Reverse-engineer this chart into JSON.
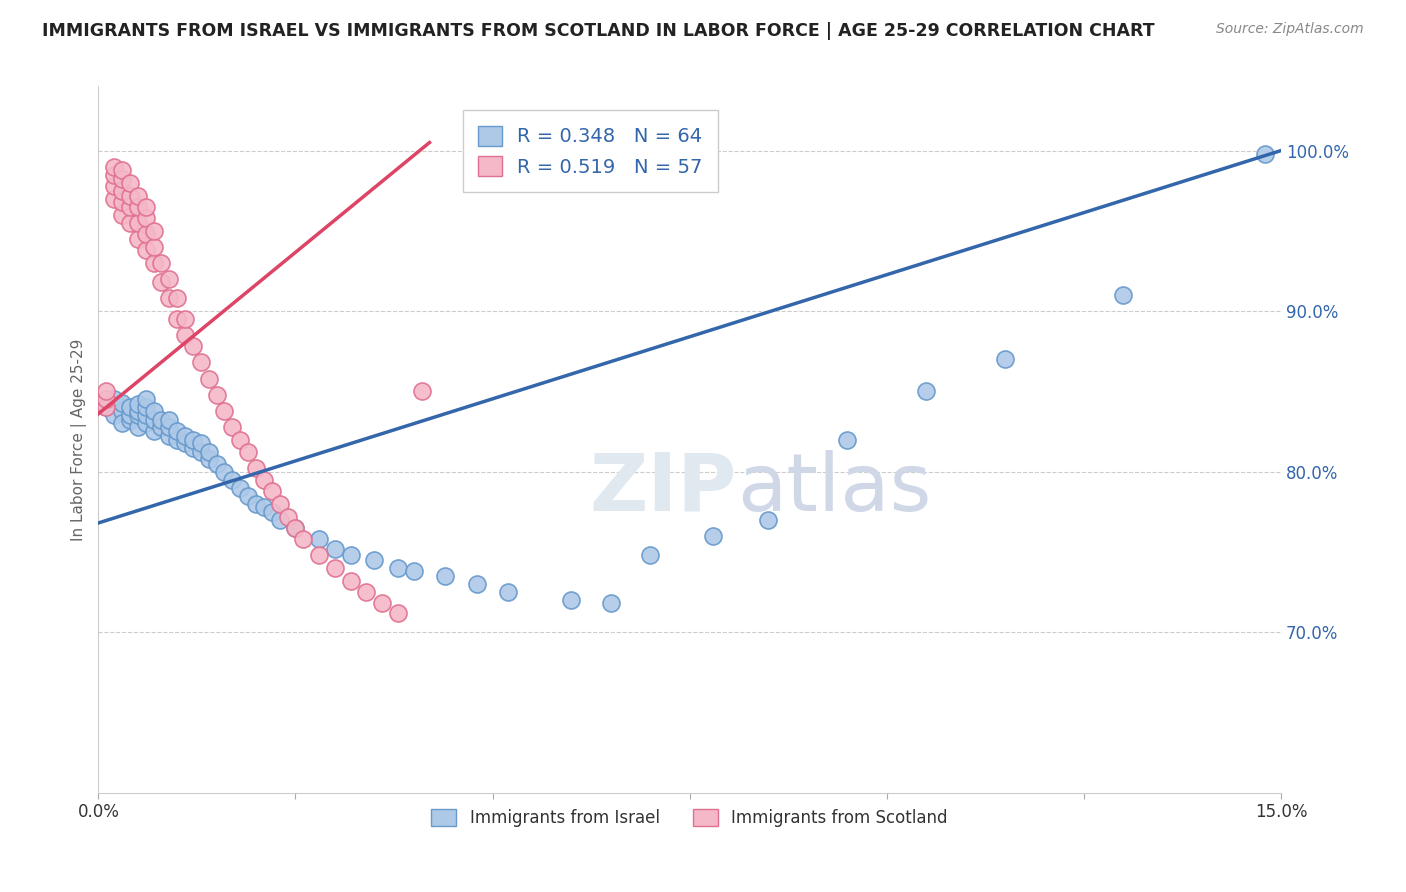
{
  "title": "IMMIGRANTS FROM ISRAEL VS IMMIGRANTS FROM SCOTLAND IN LABOR FORCE | AGE 25-29 CORRELATION CHART",
  "source": "Source: ZipAtlas.com",
  "ylabel": "In Labor Force | Age 25-29",
  "israel_R": 0.348,
  "israel_N": 64,
  "scotland_R": 0.519,
  "scotland_N": 57,
  "israel_color": "#aec9e8",
  "scotland_color": "#f4b8c8",
  "israel_edge_color": "#6699cc",
  "scotland_edge_color": "#e07090",
  "israel_line_color": "#3366aa",
  "scotland_line_color": "#dd4466",
  "background_color": "#ffffff",
  "grid_color": "#cccccc",
  "xlim": [
    0.0,
    0.15
  ],
  "ylim": [
    0.6,
    1.04
  ],
  "watermark": "ZIPatlas",
  "legend_label_israel": "Immigrants from Israel",
  "legend_label_scotland": "Immigrants from Scotland",
  "israel_x": [
    0.001,
    0.002,
    0.002,
    0.003,
    0.003,
    0.003,
    0.004,
    0.004,
    0.004,
    0.005,
    0.005,
    0.005,
    0.005,
    0.006,
    0.006,
    0.006,
    0.006,
    0.007,
    0.007,
    0.007,
    0.008,
    0.008,
    0.009,
    0.009,
    0.009,
    0.01,
    0.01,
    0.011,
    0.011,
    0.012,
    0.012,
    0.013,
    0.013,
    0.014,
    0.014,
    0.015,
    0.016,
    0.017,
    0.018,
    0.019,
    0.02,
    0.021,
    0.022,
    0.023,
    0.025,
    0.028,
    0.03,
    0.032,
    0.035,
    0.038,
    0.04,
    0.044,
    0.048,
    0.052,
    0.06,
    0.065,
    0.07,
    0.078,
    0.085,
    0.095,
    0.105,
    0.115,
    0.13,
    0.148
  ],
  "israel_y": [
    0.84,
    0.835,
    0.845,
    0.838,
    0.83,
    0.843,
    0.832,
    0.835,
    0.84,
    0.828,
    0.835,
    0.838,
    0.842,
    0.83,
    0.835,
    0.84,
    0.845,
    0.825,
    0.832,
    0.838,
    0.828,
    0.832,
    0.822,
    0.828,
    0.832,
    0.82,
    0.825,
    0.818,
    0.822,
    0.815,
    0.82,
    0.812,
    0.818,
    0.808,
    0.812,
    0.805,
    0.8,
    0.795,
    0.79,
    0.785,
    0.78,
    0.778,
    0.775,
    0.77,
    0.765,
    0.758,
    0.752,
    0.748,
    0.745,
    0.74,
    0.738,
    0.735,
    0.73,
    0.725,
    0.72,
    0.718,
    0.748,
    0.76,
    0.77,
    0.82,
    0.85,
    0.87,
    0.91,
    0.998
  ],
  "scotland_x": [
    0.001,
    0.001,
    0.001,
    0.002,
    0.002,
    0.002,
    0.002,
    0.003,
    0.003,
    0.003,
    0.003,
    0.003,
    0.004,
    0.004,
    0.004,
    0.004,
    0.005,
    0.005,
    0.005,
    0.005,
    0.006,
    0.006,
    0.006,
    0.006,
    0.007,
    0.007,
    0.007,
    0.008,
    0.008,
    0.009,
    0.009,
    0.01,
    0.01,
    0.011,
    0.011,
    0.012,
    0.013,
    0.014,
    0.015,
    0.016,
    0.017,
    0.018,
    0.019,
    0.02,
    0.021,
    0.022,
    0.023,
    0.024,
    0.025,
    0.026,
    0.028,
    0.03,
    0.032,
    0.034,
    0.036,
    0.038,
    0.041
  ],
  "scotland_y": [
    0.84,
    0.845,
    0.85,
    0.97,
    0.978,
    0.985,
    0.99,
    0.96,
    0.968,
    0.975,
    0.982,
    0.988,
    0.955,
    0.965,
    0.972,
    0.98,
    0.945,
    0.955,
    0.965,
    0.972,
    0.938,
    0.948,
    0.958,
    0.965,
    0.93,
    0.94,
    0.95,
    0.918,
    0.93,
    0.908,
    0.92,
    0.895,
    0.908,
    0.885,
    0.895,
    0.878,
    0.868,
    0.858,
    0.848,
    0.838,
    0.828,
    0.82,
    0.812,
    0.802,
    0.795,
    0.788,
    0.78,
    0.772,
    0.765,
    0.758,
    0.748,
    0.74,
    0.732,
    0.725,
    0.718,
    0.712,
    0.85
  ]
}
